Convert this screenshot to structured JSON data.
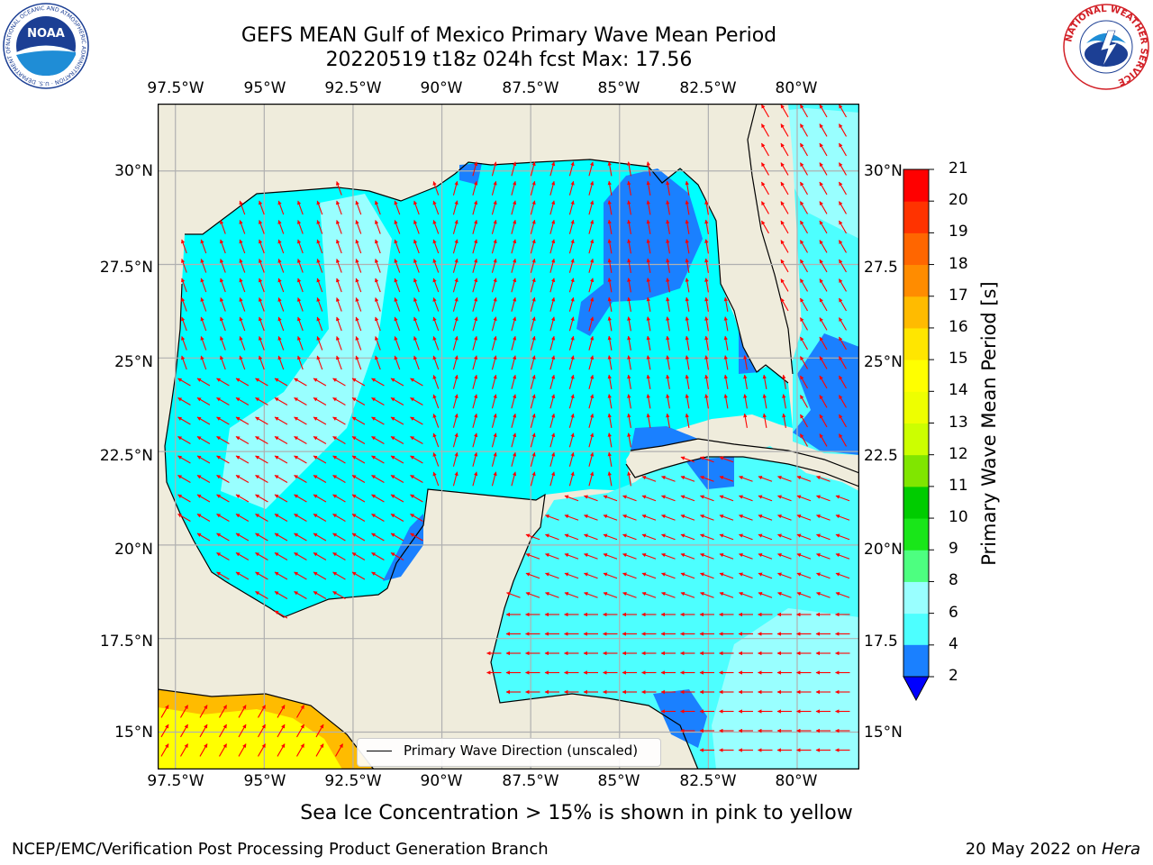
{
  "header": {
    "title_line1": "GEFS MEAN Gulf of Mexico Primary Wave Mean Period",
    "title_line2": "20220519 t18z 024h fcst   Max: 17.56"
  },
  "logos": {
    "noaa_text": "NOAA",
    "noaa_ring": "NATIONAL OCEANIC AND ATMOSPHERIC ADMINISTRATION · U.S. DEPARTMENT OF COMMERCE",
    "nws_ring": "NATIONAL WEATHER SERVICE"
  },
  "map": {
    "lon_ticks": [
      "97.5°W",
      "95°W",
      "92.5°W",
      "90°W",
      "87.5°W",
      "85°W",
      "82.5°W",
      "80°W"
    ],
    "lat_ticks_left": [
      "30°N",
      "27.5°N",
      "25°N",
      "22.5°N",
      "20°N",
      "17.5°N",
      "15°N"
    ],
    "lat_ticks_right": [
      "30°N",
      "27.5",
      "25°N",
      "22.5",
      "20°N",
      "17.5",
      "15°N"
    ],
    "lon_range": [
      -98,
      -78.25
    ],
    "lat_range": [
      14,
      31.8
    ],
    "land_color": "#efecdc",
    "grid": true,
    "vector_color": "#ff0000",
    "legend_label": "Primary Wave Direction (unscaled)"
  },
  "colorbar": {
    "label": "Primary Wave Mean Period [s]",
    "ticks": [
      "2",
      "4",
      "6",
      "8",
      "9",
      "10",
      "11",
      "12",
      "13",
      "14",
      "15",
      "16",
      "17",
      "18",
      "19",
      "20",
      "21"
    ],
    "colors": [
      "#1a80ff",
      "#00ffff",
      "#4dffff",
      "#99ffff",
      "#4dff80",
      "#19e619",
      "#00cc00",
      "#80e600",
      "#ccff00",
      "#eeff00",
      "#ffff00",
      "#ffe600",
      "#ffbb00",
      "#ff8c00",
      "#ff6600",
      "#ff3300",
      "#ff0000"
    ],
    "under_color": "#0000ff"
  },
  "footer": {
    "ice_note": "Sea Ice Concentration > 15% is shown in pink to yellow",
    "credit": "NCEP/EMC/Verification Post Processing Product Generation Branch",
    "date_prefix": "20 May 2022 on ",
    "date_host": "Hera"
  }
}
